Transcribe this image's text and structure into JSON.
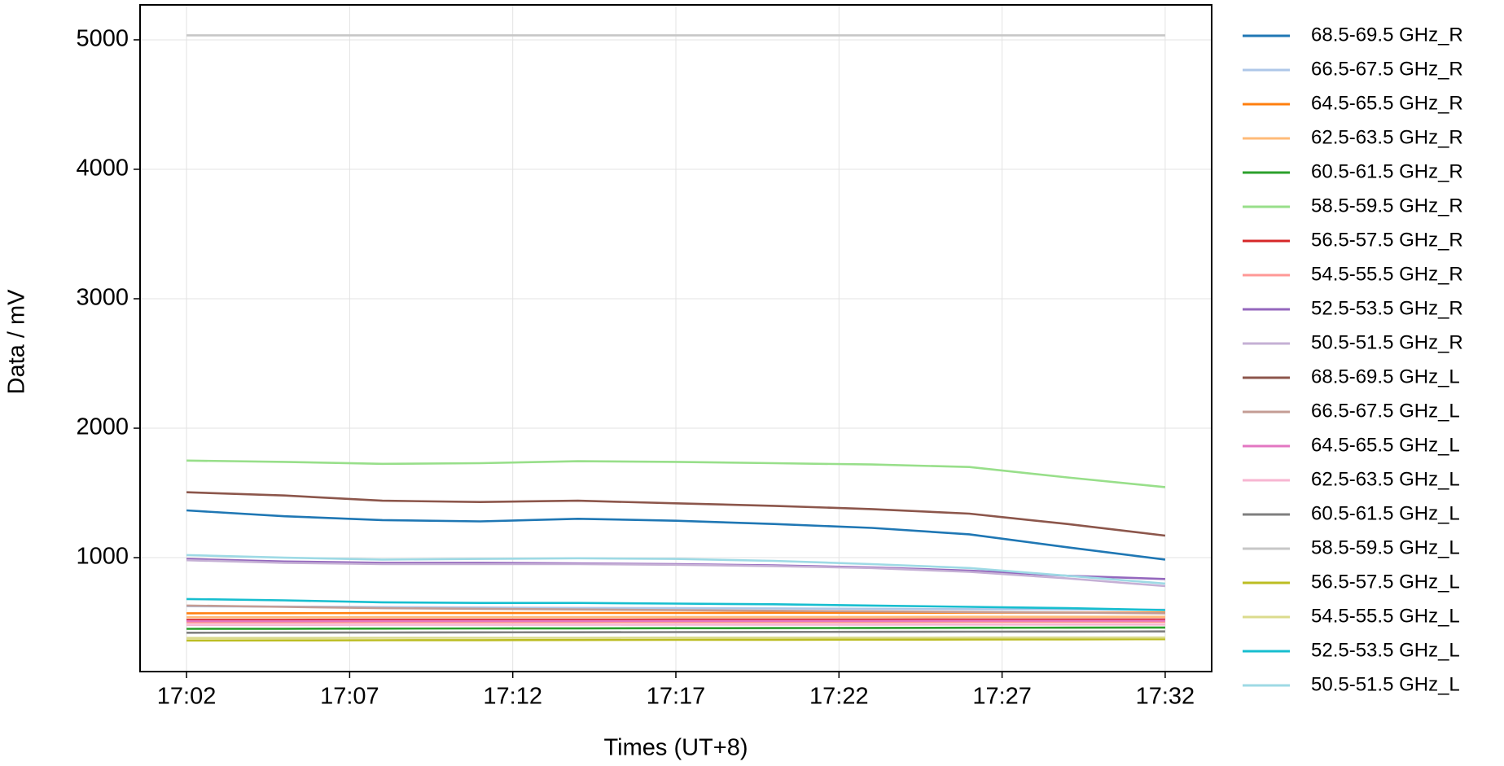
{
  "chart_data": {
    "type": "line",
    "xlabel": "Times (UT+8)",
    "ylabel": "Data / mV",
    "x": [
      "17:02",
      "17:05",
      "17:08",
      "17:11",
      "17:14",
      "17:17",
      "17:20",
      "17:23",
      "17:26",
      "17:29",
      "17:32"
    ],
    "xlim": [
      "17:02",
      "17:32"
    ],
    "xticks": [
      "17:02",
      "17:07",
      "17:12",
      "17:17",
      "17:22",
      "17:27",
      "17:32"
    ],
    "ylim": [
      120,
      5270
    ],
    "yticks": [
      1000,
      2000,
      3000,
      4000,
      5000
    ],
    "grid": true,
    "legend": "outside right",
    "series": [
      {
        "name": "68.5-69.5 GHz_R",
        "color": "#1f77b4",
        "values": [
          1365,
          1320,
          1290,
          1280,
          1300,
          1285,
          1260,
          1230,
          1180,
          1080,
          985
        ]
      },
      {
        "name": "66.5-67.5 GHz_R",
        "color": "#aec7e8",
        "values": [
          625,
          622,
          618,
          615,
          612,
          610,
          608,
          605,
          602,
          600,
          598
        ]
      },
      {
        "name": "64.5-65.5 GHz_R",
        "color": "#ff7f0e",
        "values": [
          570,
          571,
          572,
          572,
          573,
          573,
          574,
          574,
          575,
          575,
          575
        ]
      },
      {
        "name": "62.5-63.5 GHz_R",
        "color": "#ffbb78",
        "values": [
          540,
          540,
          541,
          541,
          541,
          542,
          542,
          542,
          543,
          543,
          543
        ]
      },
      {
        "name": "60.5-61.5 GHz_R",
        "color": "#2ca02c",
        "values": [
          450,
          451,
          452,
          453,
          454,
          455,
          456,
          457,
          458,
          459,
          460
        ]
      },
      {
        "name": "58.5-59.5 GHz_R",
        "color": "#98df8a",
        "values": [
          1750,
          1740,
          1725,
          1730,
          1745,
          1740,
          1730,
          1720,
          1700,
          1620,
          1545
        ]
      },
      {
        "name": "56.5-57.5 GHz_R",
        "color": "#d62728",
        "values": [
          520,
          520,
          521,
          521,
          521,
          522,
          522,
          522,
          523,
          523,
          523
        ]
      },
      {
        "name": "54.5-55.5 GHz_R",
        "color": "#ff9896",
        "values": [
          500,
          500,
          501,
          501,
          501,
          502,
          502,
          502,
          503,
          503,
          503
        ]
      },
      {
        "name": "52.5-53.5 GHz_R",
        "color": "#9467bd",
        "values": [
          990,
          970,
          960,
          960,
          955,
          950,
          940,
          925,
          900,
          860,
          835
        ]
      },
      {
        "name": "50.5-51.5 GHz_R",
        "color": "#c5b0d5",
        "values": [
          980,
          960,
          950,
          950,
          950,
          945,
          935,
          920,
          890,
          840,
          780
        ]
      },
      {
        "name": "68.5-69.5 GHz_L",
        "color": "#8c564b",
        "values": [
          1505,
          1480,
          1440,
          1430,
          1440,
          1420,
          1400,
          1375,
          1340,
          1260,
          1170
        ]
      },
      {
        "name": "66.5-67.5 GHz_L",
        "color": "#c49c94",
        "values": [
          630,
          620,
          610,
          605,
          600,
          595,
          590,
          585,
          580,
          575,
          570
        ]
      },
      {
        "name": "64.5-65.5 GHz_L",
        "color": "#e377c2",
        "values": [
          510,
          510,
          511,
          511,
          511,
          512,
          512,
          512,
          513,
          513,
          513
        ]
      },
      {
        "name": "62.5-63.5 GHz_L",
        "color": "#f7b6d2",
        "values": [
          480,
          480,
          481,
          481,
          481,
          482,
          482,
          482,
          483,
          483,
          483
        ]
      },
      {
        "name": "60.5-61.5 GHz_L",
        "color": "#7f7f7f",
        "values": [
          420,
          421,
          422,
          423,
          424,
          425,
          426,
          427,
          428,
          429,
          430
        ]
      },
      {
        "name": "58.5-59.5 GHz_L",
        "color": "#c7c7c7",
        "values": [
          5035,
          5035,
          5035,
          5035,
          5035,
          5035,
          5035,
          5035,
          5035,
          5035,
          5035
        ]
      },
      {
        "name": "56.5-57.5 GHz_L",
        "color": "#bcbd22",
        "values": [
          360,
          361,
          362,
          363,
          364,
          365,
          366,
          367,
          368,
          369,
          370
        ]
      },
      {
        "name": "54.5-55.5 GHz_L",
        "color": "#dbdb8d",
        "values": [
          380,
          380,
          381,
          381,
          381,
          382,
          382,
          382,
          383,
          383,
          383
        ]
      },
      {
        "name": "52.5-53.5 GHz_L",
        "color": "#17becf",
        "values": [
          680,
          670,
          655,
          650,
          650,
          645,
          640,
          630,
          620,
          610,
          595
        ]
      },
      {
        "name": "50.5-51.5 GHz_L",
        "color": "#9edae5",
        "values": [
          1020,
          1000,
          985,
          990,
          995,
          990,
          975,
          950,
          920,
          860,
          800
        ]
      }
    ]
  }
}
